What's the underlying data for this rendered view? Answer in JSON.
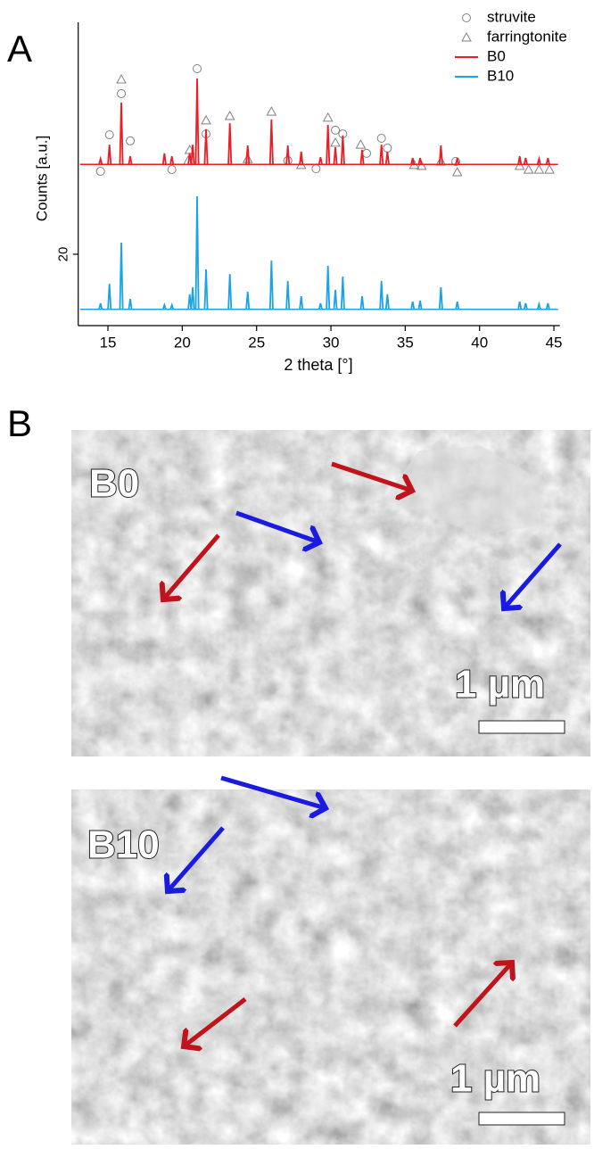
{
  "chart_data": {
    "type": "spectrum",
    "ylabel": "Counts [a.u.]",
    "xlabel": "2 theta [°]",
    "xlim": [
      13,
      45.4
    ],
    "xticks": [
      15,
      20,
      25,
      30,
      35,
      40,
      45
    ],
    "ylim": [
      0,
      100
    ],
    "yticks": [
      20
    ],
    "x": [
      14.5,
      15.1,
      15.9,
      16.5,
      18.8,
      19.3,
      20.5,
      20.7,
      21.0,
      21.6,
      23.2,
      24.4,
      26.0,
      27.1,
      28.0,
      29.3,
      29.8,
      30.3,
      30.8,
      32.1,
      33.4,
      33.8,
      35.5,
      36.0,
      37.4,
      38.5,
      42.7,
      43.1,
      44.0,
      44.6
    ],
    "series": [
      {
        "name": "struvite",
        "type": "scatter",
        "marker": "circle",
        "color": "#808080",
        "x": [
          14.5,
          15.1,
          15.9,
          16.5,
          19.3,
          21.0,
          21.6,
          27.1,
          29.0,
          30.3,
          30.8,
          32.4,
          33.4,
          33.8,
          38.4
        ],
        "values": [
          48.6,
          61.2,
          75.4,
          59.1,
          49.2,
          84,
          61.5,
          52.3,
          49.5,
          62.8,
          61.5,
          54.8,
          60,
          56.6,
          52
        ]
      },
      {
        "name": "farringtonite",
        "type": "scatter",
        "marker": "triangle",
        "color": "#808080",
        "x": [
          15.9,
          20.5,
          20.4,
          21.6,
          23.2,
          24.4,
          26.0,
          28.0,
          29.8,
          30.3,
          32.0,
          35.6,
          36.1,
          37.4,
          38.5,
          42.7,
          43.3,
          44.0,
          44.7
        ],
        "values": [
          80.3,
          56,
          52.3,
          66.2,
          67.7,
          52.9,
          69.2,
          50.8,
          67.1,
          58.5,
          57.8,
          50.8,
          50.5,
          52,
          48.3,
          50.5,
          49.2,
          49.2,
          49.2
        ]
      },
      {
        "name": "B0",
        "type": "spectrum",
        "color": "#ee1c24",
        "baseline": 51,
        "values": [
          52.9,
          57.8,
          72.3,
          53.8,
          54.8,
          53.8,
          54.8,
          57.8,
          80.6,
          63.1,
          65.2,
          57.5,
          66.5,
          57.5,
          55.4,
          53.5,
          64.6,
          56.9,
          61,
          56,
          57.8,
          55.4,
          53.2,
          53.2,
          57.5,
          53.2,
          53.8,
          53.2,
          52.9,
          53.2
        ]
      },
      {
        "name": "B10",
        "type": "spectrum",
        "color": "#1aa3e8",
        "baseline": 1,
        "values": [
          3.1,
          9.8,
          24,
          4.6,
          2.5,
          2.5,
          6.2,
          8.6,
          40,
          14.8,
          13.2,
          7.1,
          17.8,
          10.8,
          5.5,
          3.1,
          16,
          7.7,
          12.3,
          5.5,
          10.8,
          6.2,
          3.7,
          4,
          8.6,
          3.7,
          3.7,
          3.1,
          2.8,
          3.1
        ]
      }
    ]
  },
  "panels": {
    "a": "A",
    "b": "B"
  },
  "images": [
    {
      "label": "B0",
      "scale": "1 µm"
    },
    {
      "label": "B10",
      "scale": "1 µm"
    }
  ]
}
